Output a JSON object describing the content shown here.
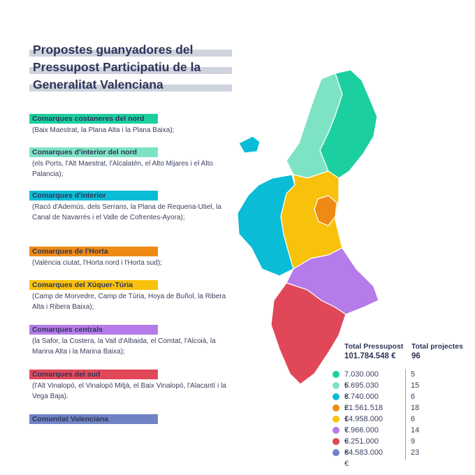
{
  "title": {
    "lines": [
      "Propostes guanyadores del",
      "Pressupost Participatiu de la",
      "Generalitat Valenciana"
    ]
  },
  "regions": [
    {
      "name": "Comarques costaneres del nord",
      "desc": "(Baix Maestrat, la Plana Alta i la Plana Baixa);",
      "color": "#1ccfa0"
    },
    {
      "name": "Comarques d'interior del nord",
      "desc": "(els Ports, l'Alt Maestrat, l'Alcalatén, el Alto Mijares i el Alto Palancia);",
      "color": "#7de3c4"
    },
    {
      "name": "Comarques d'interior",
      "desc": "(Racó d'Ademús, dels Serrans, la Plana de Requena-Utiel, la Canal de Navarrés i el Valle de Cofrentes-Ayora);",
      "color": "#0bbcd6"
    },
    {
      "name": "Comarques de l'Horta",
      "desc": "(València ciutat, l'Horta nord i l'Horta sud);",
      "color": "#ef8a14"
    },
    {
      "name": "Comarques del Xúquer-Túria",
      "desc": "(Camp de Morvedre, Camp de Túria, Hoya de Buñol, la Ribera Alta i Ribera Baixa);",
      "color": "#f8c20c"
    },
    {
      "name": "Comarques centrals",
      "desc": "(la Safor, la Costera, la Vall d'Albaida, el Comtat, l'Alcoià, la Marina Alta i la Marina Baixa);",
      "color": "#b57be8"
    },
    {
      "name": "Comarques del sud",
      "desc": "(l'Alt Vinalopó, el Vinalopó Mitjà, el Baix Vinalopó, l'Alacantí i la Vega Baja).",
      "color": "#e0485a"
    },
    {
      "name": "Comunitat Valenciana",
      "desc": "",
      "color": "#6f83c4"
    }
  ],
  "totals": {
    "budget_label": "Total Pressupost",
    "budget_value": "101.784.548 €",
    "projects_label": "Total projectes",
    "projects_value": "96"
  },
  "legend": [
    {
      "amount": "7.030.000 €",
      "count": "5",
      "color": "#1ccfa0"
    },
    {
      "amount": "5.695.030 €",
      "count": "15",
      "color": "#7de3c4"
    },
    {
      "amount": "3.740.000 €",
      "count": "6",
      "color": "#0bbcd6"
    },
    {
      "amount": "21.561.518 €",
      "count": "18",
      "color": "#ef8a14"
    },
    {
      "amount": "14.958.000 €",
      "count": "6",
      "color": "#f8c20c"
    },
    {
      "amount": "7.966.000 €",
      "count": "14",
      "color": "#b57be8"
    },
    {
      "amount": "6.251.000 €",
      "count": "9",
      "color": "#e0485a"
    },
    {
      "amount": "34.583.000 €",
      "count": "23",
      "color": "#6f83c4"
    }
  ]
}
